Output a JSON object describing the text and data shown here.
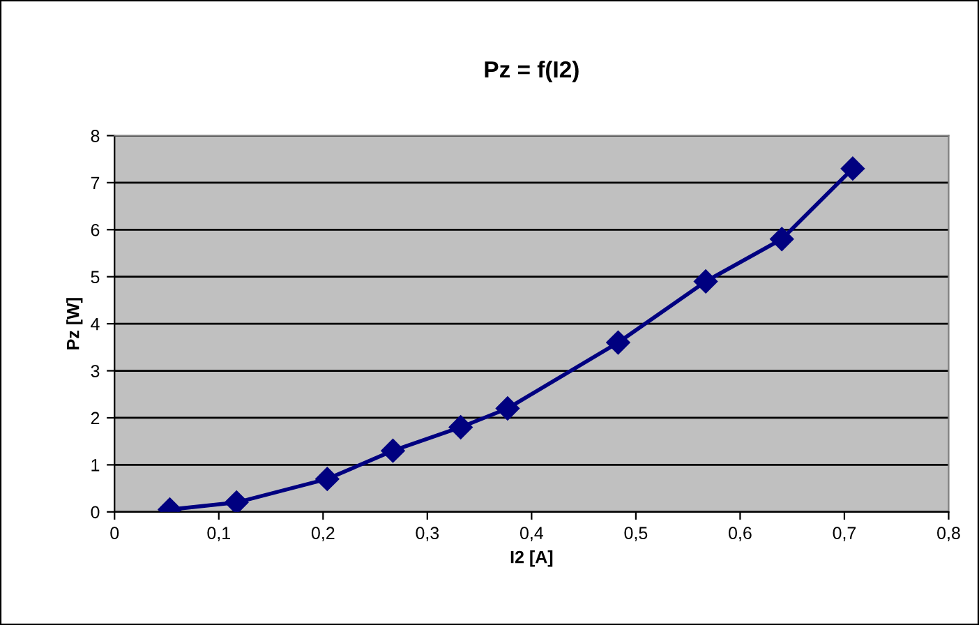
{
  "chart_data": {
    "type": "line",
    "title": "Pz = f(I2)",
    "xlabel": "I2 [A]",
    "ylabel": "Pz [W]",
    "x": [
      0.053,
      0.117,
      0.204,
      0.267,
      0.332,
      0.377,
      0.483,
      0.567,
      0.64,
      0.708
    ],
    "series": [
      {
        "color": "#000080",
        "values": [
          0.05,
          0.2,
          0.7,
          1.3,
          1.8,
          2.2,
          3.6,
          4.9,
          5.8,
          7.3
        ]
      }
    ],
    "xlim": [
      0,
      0.8
    ],
    "xticks": [
      0,
      {
        "value": 0.1,
        "label": "0,1"
      },
      {
        "value": 0.2,
        "label": "0,2"
      },
      {
        "value": 0.3,
        "label": "0,3"
      },
      {
        "value": 0.4,
        "label": "0,4"
      },
      {
        "value": 0.5,
        "label": "0,5"
      },
      {
        "value": 0.6,
        "label": "0,6"
      },
      {
        "value": 0.7,
        "label": "0,7"
      },
      {
        "value": 0.8,
        "label": "0,8"
      }
    ],
    "ylim": [
      0,
      8
    ],
    "yticks": [
      0,
      1,
      2,
      3,
      4,
      5,
      6,
      7,
      8
    ],
    "grid": "y",
    "legend": false,
    "marker": "diamond",
    "line_style": "solid"
  }
}
